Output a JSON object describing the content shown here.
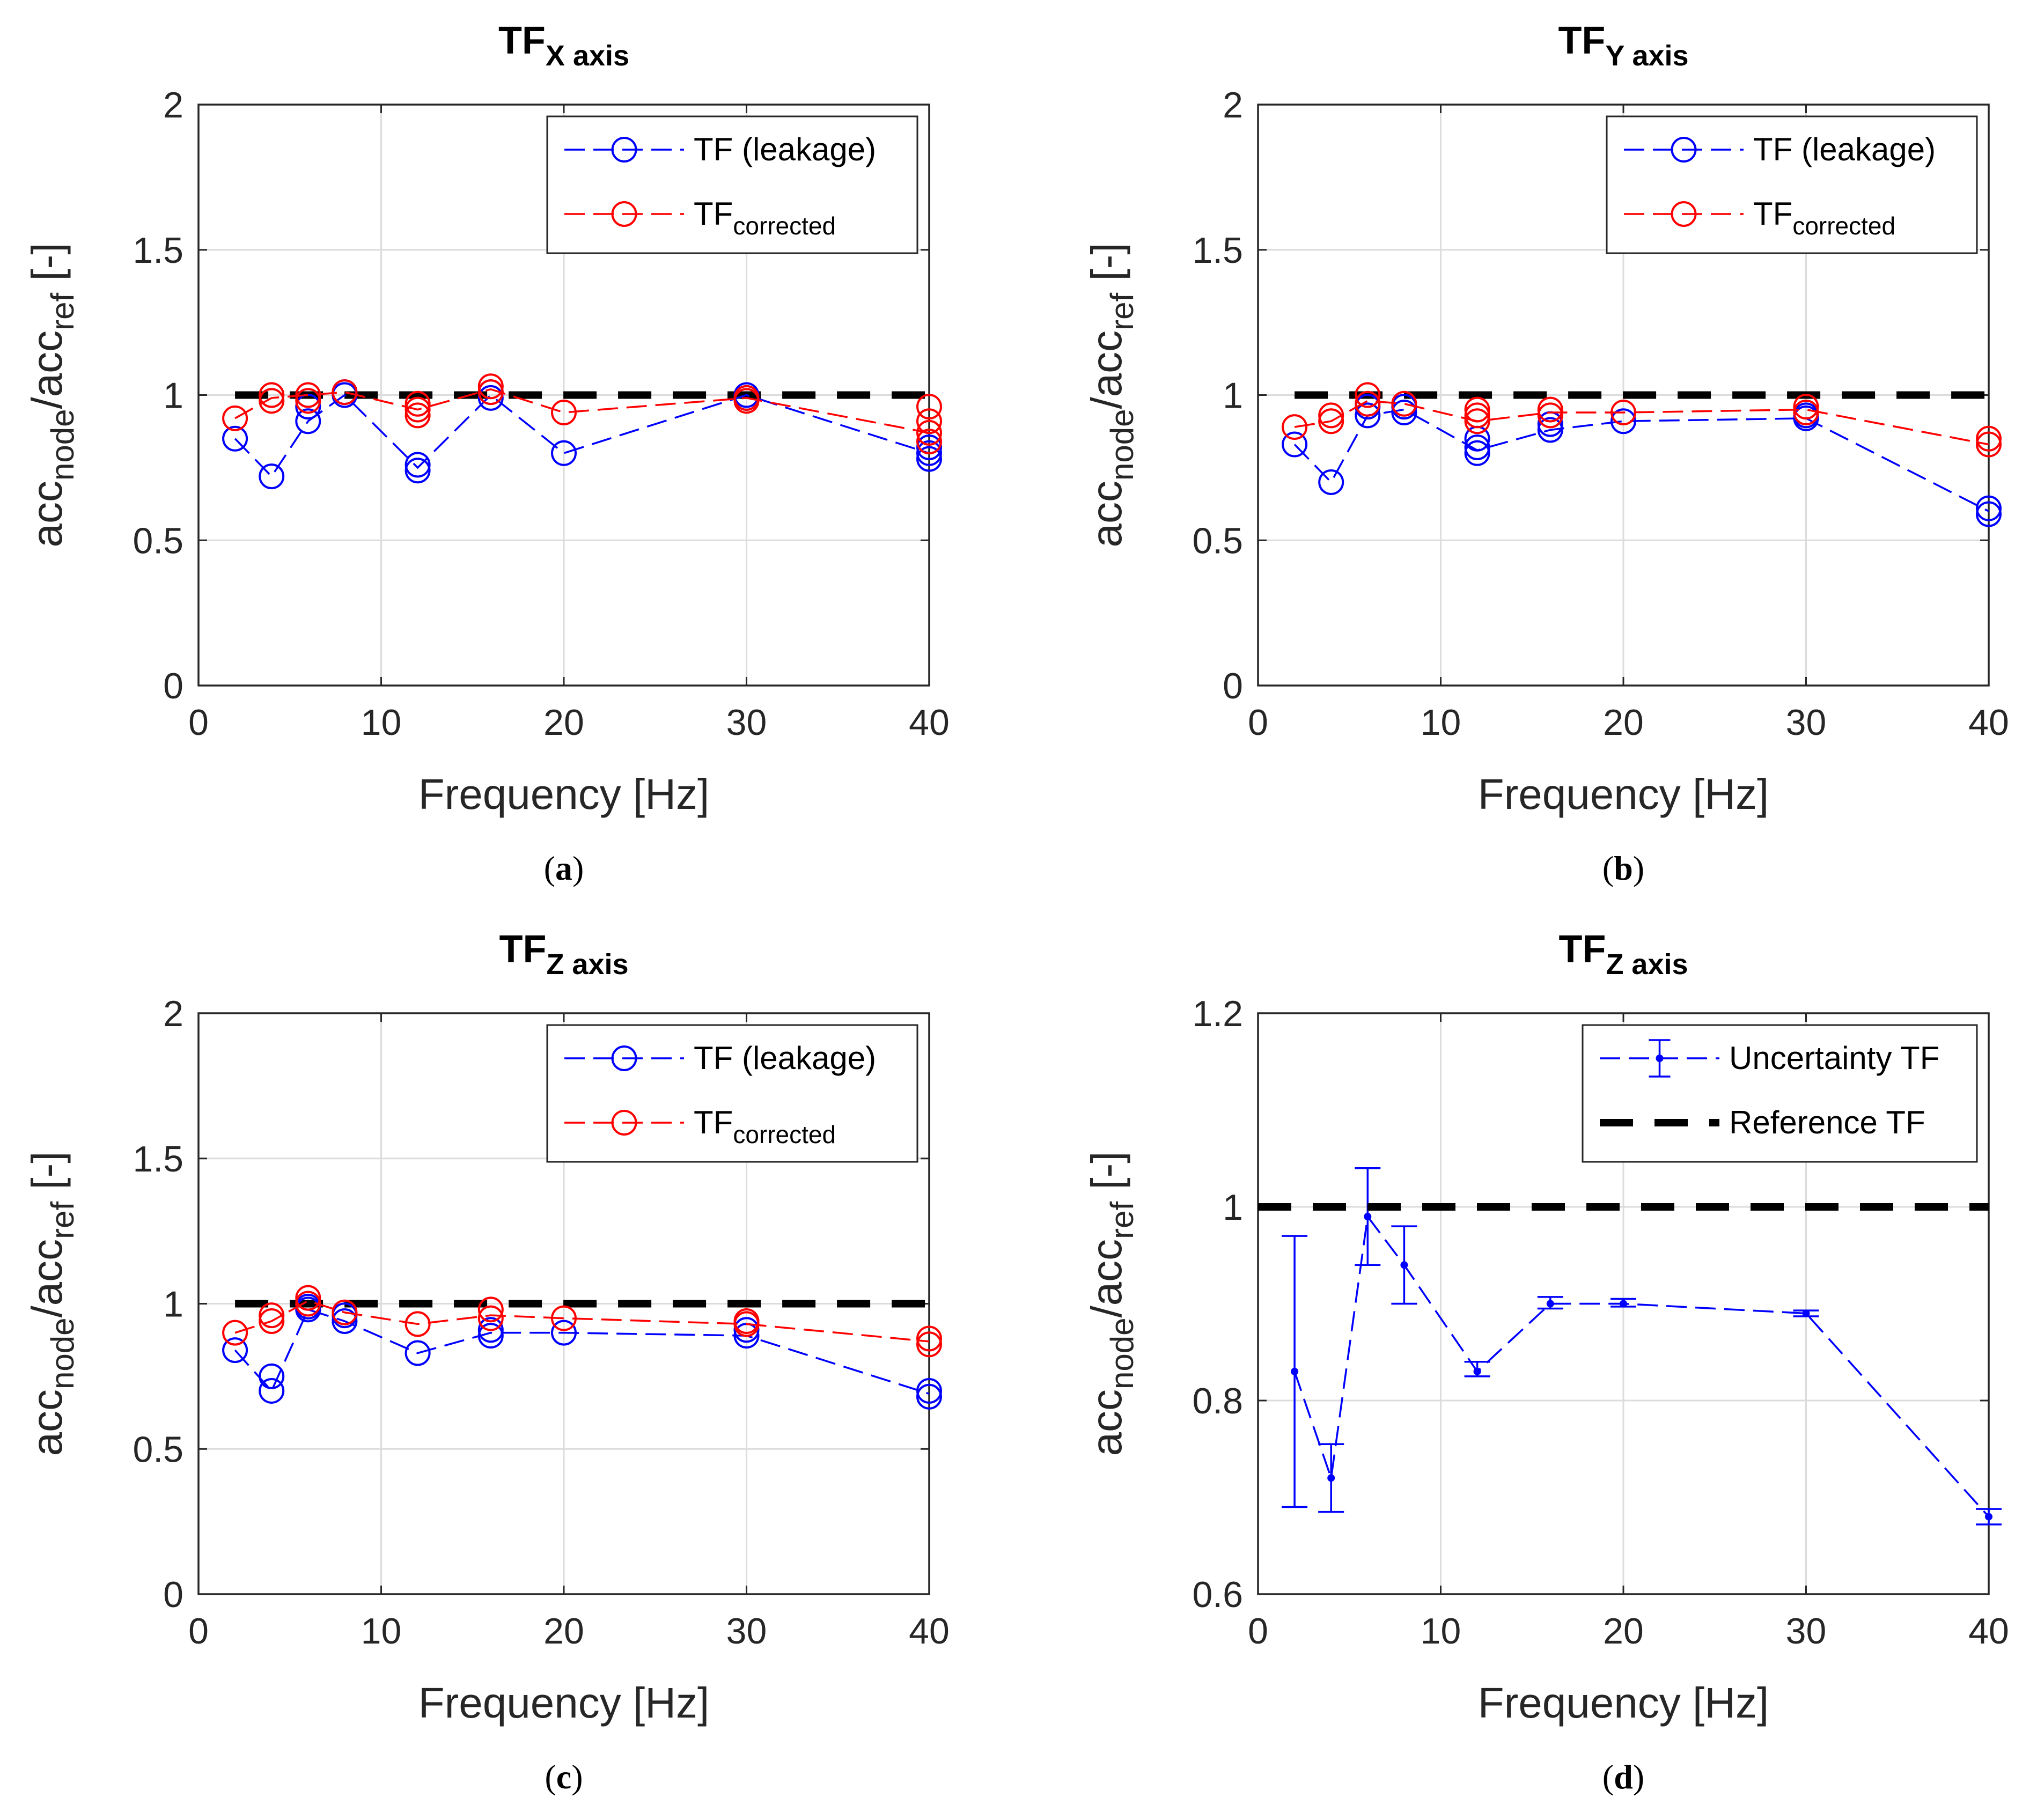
{
  "chart_data": [
    {
      "type": "line",
      "panel_label": "(a)",
      "title_main": "TF",
      "title_sub": "X axis",
      "xlabel": "Frequency [Hz]",
      "ylabel_parts": [
        "acc",
        "node",
        "/acc",
        "ref",
        " [-]"
      ],
      "xlim": [
        0,
        40
      ],
      "ylim": [
        0,
        2
      ],
      "xticks": [
        0,
        10,
        20,
        30,
        40
      ],
      "yticks": [
        0,
        0.5,
        1,
        1.5,
        2
      ],
      "ytick_labels": [
        "0",
        "0.5",
        "1",
        "1.5",
        "2"
      ],
      "grid": true,
      "legend_position": "top-right",
      "reference_line": 1,
      "series": [
        {
          "name": "TF (leakage)",
          "color": "#0000ff",
          "x": [
            2,
            4,
            6,
            8,
            12,
            16,
            20,
            30,
            40
          ],
          "y": [
            0.85,
            0.72,
            0.91,
            1.0,
            0.75,
            1.0,
            0.8,
            1.0,
            0.8
          ],
          "markers": [
            [
              2,
              0.85
            ],
            [
              4,
              0.72
            ],
            [
              6,
              0.91
            ],
            [
              6,
              0.96
            ],
            [
              8,
              1.0
            ],
            [
              8,
              1.01
            ],
            [
              12,
              0.74
            ],
            [
              12,
              0.76
            ],
            [
              16,
              0.99
            ],
            [
              16,
              1.01
            ],
            [
              20,
              0.8
            ],
            [
              30,
              0.99
            ],
            [
              30,
              1.0
            ],
            [
              40,
              0.78
            ],
            [
              40,
              0.8
            ],
            [
              40,
              0.82
            ]
          ]
        },
        {
          "name": "TF",
          "name_sub": "corrected",
          "color": "#ff0000",
          "x": [
            2,
            4,
            6,
            8,
            12,
            16,
            20,
            30,
            40
          ],
          "y": [
            0.92,
            0.99,
            1.0,
            1.01,
            0.95,
            1.02,
            0.94,
            0.99,
            0.87
          ],
          "markers": [
            [
              2,
              0.92
            ],
            [
              4,
              0.98
            ],
            [
              4,
              1.0
            ],
            [
              6,
              0.98
            ],
            [
              6,
              1.0
            ],
            [
              8,
              1.01
            ],
            [
              12,
              0.93
            ],
            [
              12,
              0.95
            ],
            [
              12,
              0.97
            ],
            [
              16,
              1.01
            ],
            [
              16,
              1.03
            ],
            [
              20,
              0.94
            ],
            [
              30,
              0.98
            ],
            [
              30,
              0.99
            ],
            [
              40,
              0.84
            ],
            [
              40,
              0.87
            ],
            [
              40,
              0.91
            ],
            [
              40,
              0.96
            ]
          ]
        }
      ]
    },
    {
      "type": "line",
      "panel_label": "(b)",
      "title_main": "TF",
      "title_sub": "Y axis",
      "xlabel": "Frequency [Hz]",
      "ylabel_parts": [
        "acc",
        "node",
        "/acc",
        "ref",
        " [-]"
      ],
      "xlim": [
        0,
        40
      ],
      "ylim": [
        0,
        2
      ],
      "xticks": [
        0,
        10,
        20,
        30,
        40
      ],
      "yticks": [
        0,
        0.5,
        1,
        1.5,
        2
      ],
      "ytick_labels": [
        "0",
        "0.5",
        "1",
        "1.5",
        "2"
      ],
      "grid": true,
      "legend_position": "top-right",
      "reference_line": 1,
      "series": [
        {
          "name": "TF (leakage)",
          "color": "#0000ff",
          "x": [
            2,
            4,
            6,
            8,
            12,
            16,
            20,
            30,
            40
          ],
          "y": [
            0.83,
            0.7,
            0.93,
            0.95,
            0.81,
            0.88,
            0.91,
            0.92,
            0.6
          ],
          "markers": [
            [
              2,
              0.83
            ],
            [
              4,
              0.7
            ],
            [
              6,
              0.93
            ],
            [
              6,
              0.96
            ],
            [
              8,
              0.94
            ],
            [
              8,
              0.96
            ],
            [
              12,
              0.8
            ],
            [
              12,
              0.82
            ],
            [
              12,
              0.85
            ],
            [
              16,
              0.88
            ],
            [
              16,
              0.9
            ],
            [
              20,
              0.91
            ],
            [
              30,
              0.92
            ],
            [
              30,
              0.93
            ],
            [
              40,
              0.59
            ],
            [
              40,
              0.61
            ]
          ]
        },
        {
          "name": "TF",
          "name_sub": "corrected",
          "color": "#ff0000",
          "x": [
            2,
            4,
            6,
            8,
            12,
            16,
            20,
            30,
            40
          ],
          "y": [
            0.89,
            0.91,
            0.98,
            0.97,
            0.91,
            0.94,
            0.94,
            0.95,
            0.83
          ],
          "markers": [
            [
              2,
              0.89
            ],
            [
              4,
              0.91
            ],
            [
              4,
              0.93
            ],
            [
              6,
              0.97
            ],
            [
              6,
              1.0
            ],
            [
              8,
              0.97
            ],
            [
              12,
              0.91
            ],
            [
              12,
              0.93
            ],
            [
              12,
              0.95
            ],
            [
              16,
              0.93
            ],
            [
              16,
              0.95
            ],
            [
              20,
              0.94
            ],
            [
              30,
              0.94
            ],
            [
              30,
              0.96
            ],
            [
              40,
              0.83
            ],
            [
              40,
              0.85
            ]
          ]
        }
      ]
    },
    {
      "type": "line",
      "panel_label": "(c)",
      "title_main": "TF",
      "title_sub": "Z axis",
      "xlabel": "Frequency [Hz]",
      "ylabel_parts": [
        "acc",
        "node",
        "/acc",
        "ref",
        " [-]"
      ],
      "xlim": [
        0,
        40
      ],
      "ylim": [
        0,
        2
      ],
      "xticks": [
        0,
        10,
        20,
        30,
        40
      ],
      "yticks": [
        0,
        0.5,
        1,
        1.5,
        2
      ],
      "ytick_labels": [
        "0",
        "0.5",
        "1",
        "1.5",
        "2"
      ],
      "grid": true,
      "legend_position": "top-right",
      "reference_line": 1,
      "series": [
        {
          "name": "TF (leakage)",
          "color": "#0000ff",
          "x": [
            2,
            4,
            6,
            8,
            12,
            16,
            20,
            30,
            40
          ],
          "y": [
            0.84,
            0.7,
            0.98,
            0.94,
            0.83,
            0.9,
            0.9,
            0.89,
            0.69
          ],
          "markers": [
            [
              2,
              0.84
            ],
            [
              4,
              0.7
            ],
            [
              4,
              0.75
            ],
            [
              6,
              0.98
            ],
            [
              6,
              0.99
            ],
            [
              8,
              0.94
            ],
            [
              8,
              0.96
            ],
            [
              12,
              0.83
            ],
            [
              16,
              0.89
            ],
            [
              16,
              0.91
            ],
            [
              20,
              0.9
            ],
            [
              30,
              0.89
            ],
            [
              30,
              0.91
            ],
            [
              40,
              0.68
            ],
            [
              40,
              0.7
            ]
          ]
        },
        {
          "name": "TF",
          "name_sub": "corrected",
          "color": "#ff0000",
          "x": [
            2,
            4,
            6,
            8,
            12,
            16,
            20,
            30,
            40
          ],
          "y": [
            0.9,
            0.94,
            1.01,
            0.97,
            0.93,
            0.96,
            0.95,
            0.93,
            0.87
          ],
          "markers": [
            [
              2,
              0.9
            ],
            [
              4,
              0.94
            ],
            [
              4,
              0.96
            ],
            [
              6,
              1.0
            ],
            [
              6,
              1.02
            ],
            [
              8,
              0.97
            ],
            [
              12,
              0.93
            ],
            [
              16,
              0.95
            ],
            [
              16,
              0.98
            ],
            [
              20,
              0.95
            ],
            [
              30,
              0.93
            ],
            [
              30,
              0.94
            ],
            [
              40,
              0.86
            ],
            [
              40,
              0.88
            ]
          ]
        }
      ]
    },
    {
      "type": "line",
      "panel_label": "(d)",
      "title_main": "TF",
      "title_sub": "Z axis",
      "xlabel": "Frequency [Hz]",
      "ylabel_parts": [
        "acc",
        "node",
        "/acc",
        "ref",
        " [-]"
      ],
      "xlim": [
        0,
        40
      ],
      "ylim": [
        0.6,
        1.2
      ],
      "xticks": [
        0,
        10,
        20,
        30,
        40
      ],
      "yticks": [
        0.6,
        0.8,
        1,
        1.2
      ],
      "ytick_labels": [
        "0.6",
        "0.8",
        "1",
        "1.2"
      ],
      "grid": true,
      "legend_position": "top-right",
      "reference_line": 1,
      "series": [
        {
          "name": "Uncertainty TF",
          "color": "#0000ff",
          "style": "errorbar",
          "x": [
            2,
            4,
            6,
            8,
            12,
            16,
            20,
            30,
            40
          ],
          "y": [
            0.83,
            0.72,
            0.99,
            0.94,
            0.83,
            0.9,
            0.9,
            0.89,
            0.68
          ],
          "y_low": [
            0.69,
            0.685,
            0.94,
            0.9,
            0.825,
            0.895,
            0.897,
            0.887,
            0.672
          ],
          "y_high": [
            0.97,
            0.755,
            1.04,
            0.98,
            0.84,
            0.907,
            0.905,
            0.893,
            0.688
          ]
        },
        {
          "name": "Reference TF",
          "color": "#000000",
          "style": "reference",
          "x": [
            0,
            40
          ],
          "y": [
            1,
            1
          ]
        }
      ]
    }
  ]
}
